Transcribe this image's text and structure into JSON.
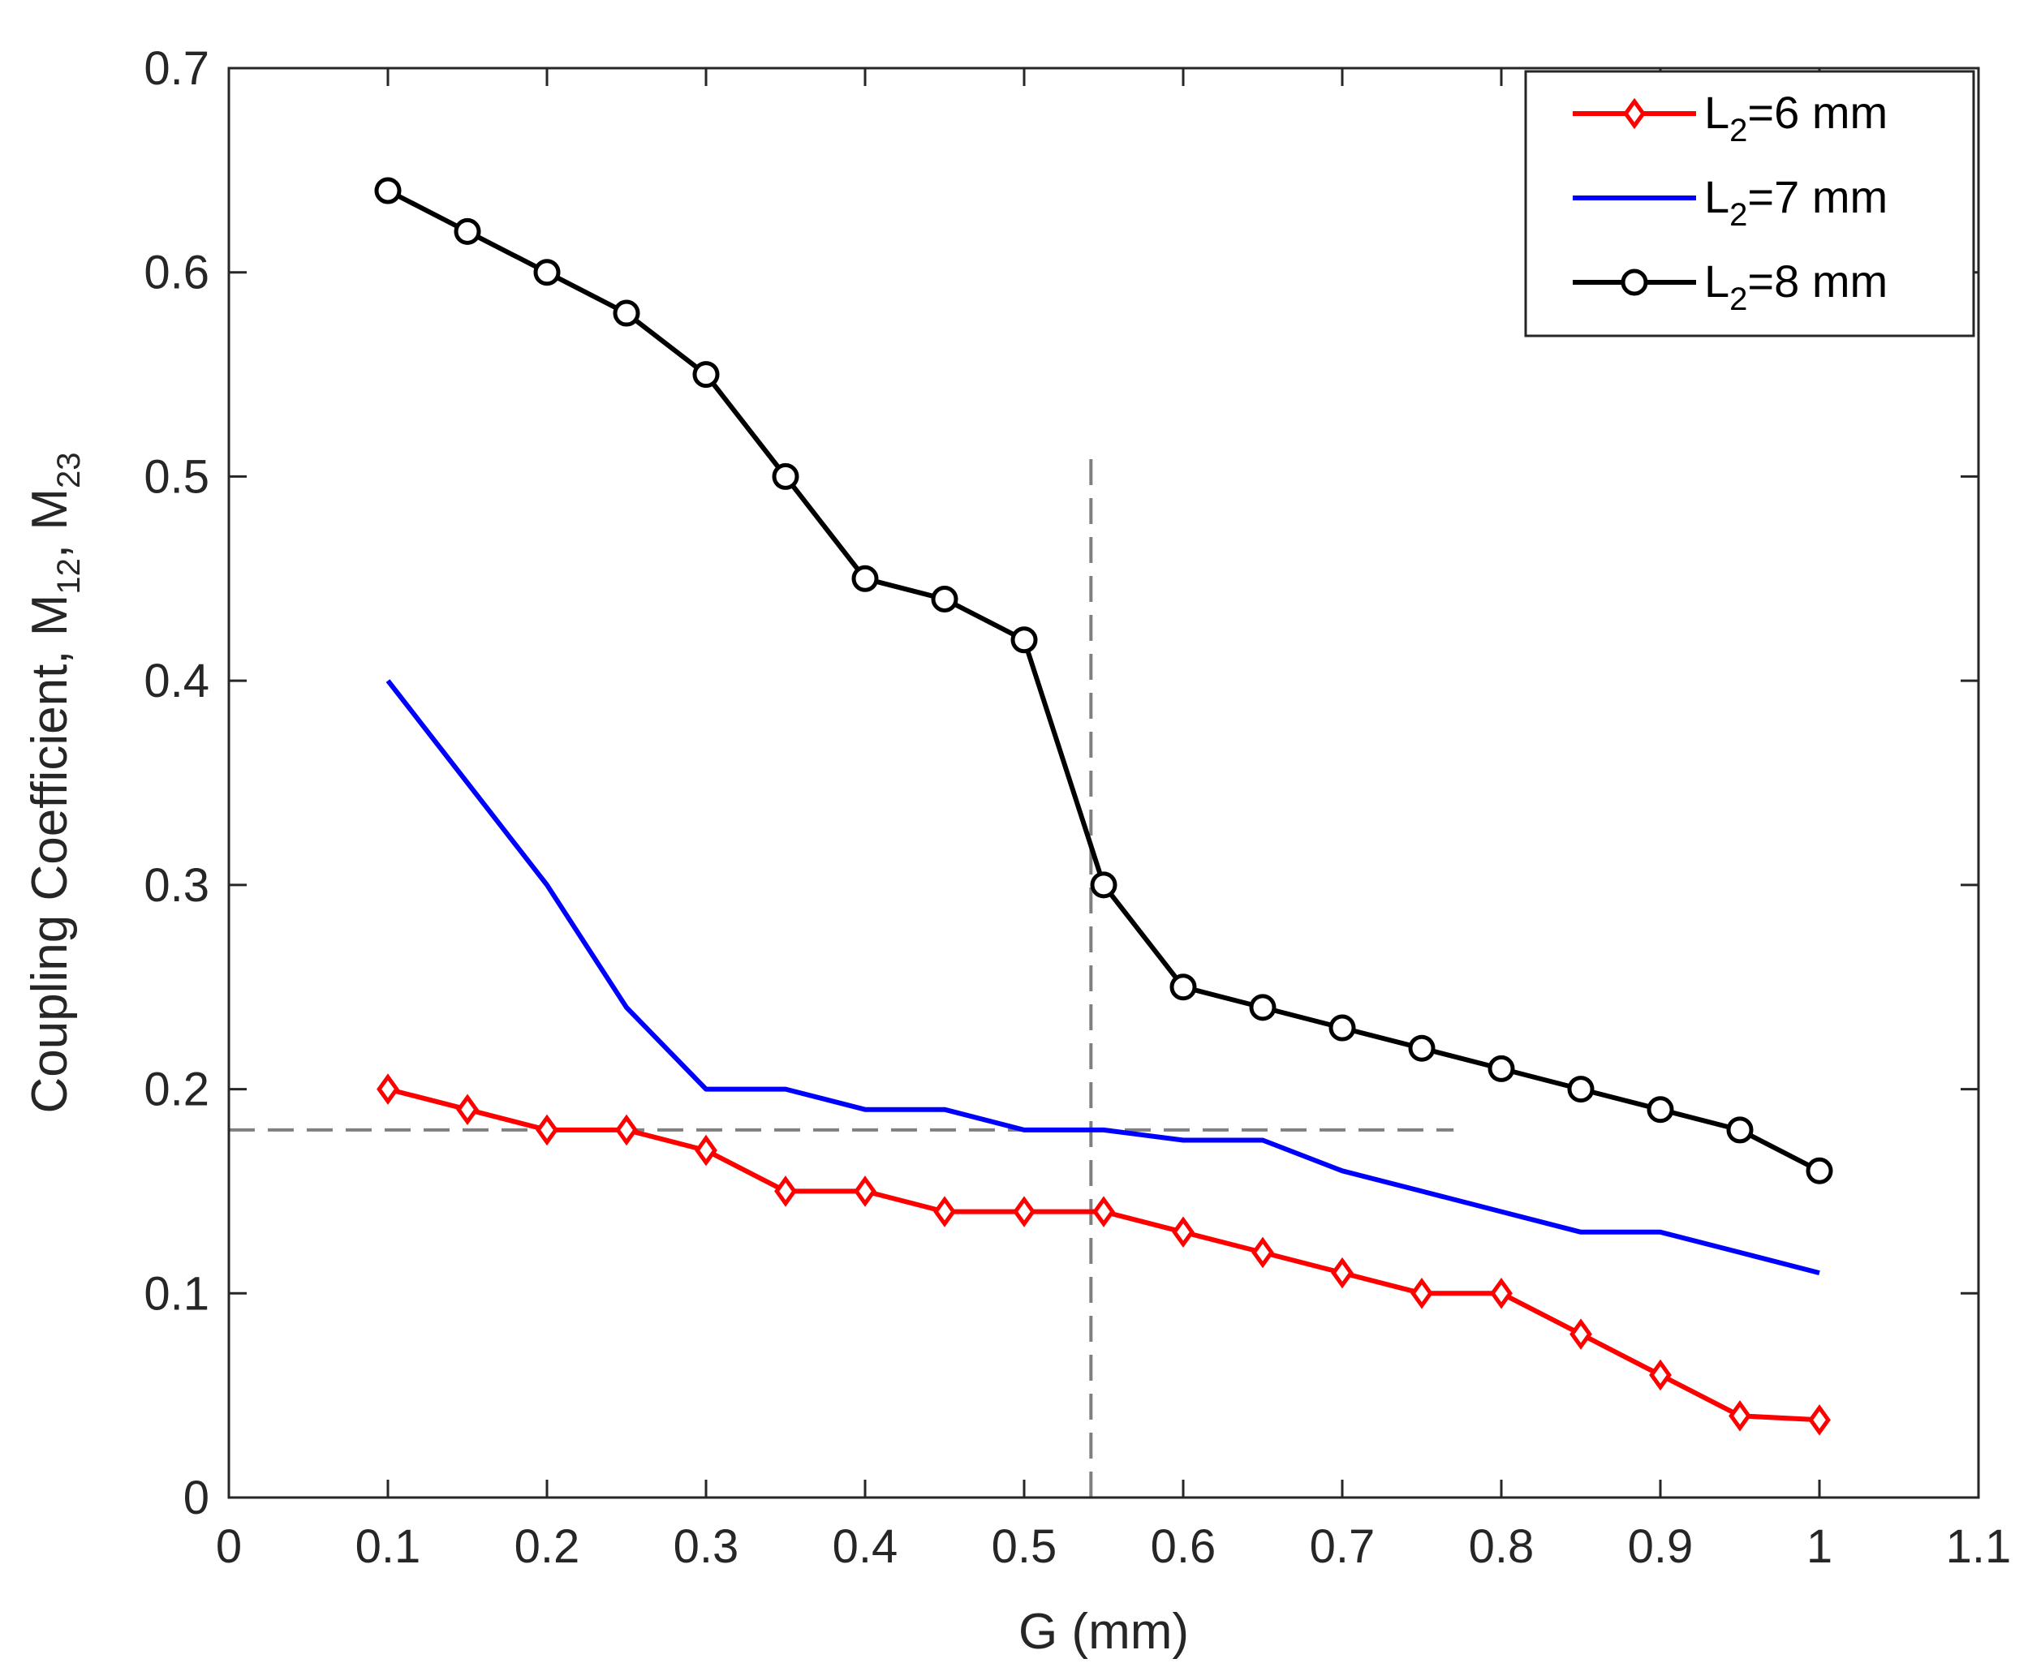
{
  "chart_data": {
    "type": "line",
    "title": "",
    "xlabel": "G (mm)",
    "ylabel": {
      "prefix": "Coupling Coefficient, M",
      "sub1": "12",
      "sep": ", M",
      "sub2": "23"
    },
    "xlim": [
      0,
      1.1
    ],
    "ylim": [
      0,
      0.7
    ],
    "xticks": [
      0,
      0.1,
      0.2,
      0.3,
      0.4,
      0.5,
      0.6,
      0.7,
      0.8,
      0.9,
      1,
      1.1
    ],
    "xtick_labels": [
      "0",
      "0.1",
      "0.2",
      "0.3",
      "0.4",
      "0.5",
      "0.6",
      "0.7",
      "0.8",
      "0.9",
      "1",
      "1.1"
    ],
    "yticks": [
      0,
      0.1,
      0.2,
      0.3,
      0.4,
      0.5,
      0.6,
      0.7
    ],
    "ytick_labels": [
      "0",
      "0.1",
      "0.2",
      "0.3",
      "0.4",
      "0.5",
      "0.6",
      "0.7"
    ],
    "grid": false,
    "legend_position": "top-right",
    "x": [
      0.1,
      0.15,
      0.2,
      0.25,
      0.3,
      0.35,
      0.4,
      0.45,
      0.5,
      0.55,
      0.6,
      0.65,
      0.7,
      0.75,
      0.8,
      0.85,
      0.9,
      0.95,
      1.0
    ],
    "series": [
      {
        "id": "l2-6mm",
        "name_prefix": "L",
        "name_sub": "2",
        "name_suffix": "=6 mm",
        "color": "#ff0000",
        "marker": "diamond",
        "values": [
          0.2,
          0.19,
          0.18,
          0.18,
          0.17,
          0.15,
          0.15,
          0.14,
          0.14,
          0.14,
          0.13,
          0.12,
          0.11,
          0.1,
          0.1,
          0.08,
          0.06,
          0.04,
          0.038
        ]
      },
      {
        "id": "l2-7mm",
        "name_prefix": "L",
        "name_sub": "2",
        "name_suffix": "=7 mm",
        "color": "#0000ff",
        "marker": "none",
        "values": [
          0.4,
          0.35,
          0.3,
          0.24,
          0.2,
          0.2,
          0.19,
          0.19,
          0.18,
          0.18,
          0.175,
          0.175,
          0.16,
          0.15,
          0.14,
          0.13,
          0.13,
          0.12,
          0.11
        ]
      },
      {
        "id": "l2-8mm",
        "name_prefix": "L",
        "name_sub": "2",
        "name_suffix": "=8 mm",
        "color": "#000000",
        "marker": "circle",
        "values": [
          0.64,
          0.62,
          0.6,
          0.58,
          0.55,
          0.5,
          0.45,
          0.44,
          0.42,
          0.3,
          0.25,
          0.24,
          0.23,
          0.22,
          0.21,
          0.2,
          0.19,
          0.18,
          0.16
        ]
      }
    ],
    "reference_lines": [
      {
        "id": "horizontal-reference",
        "orientation": "horizontal",
        "value": 0.18,
        "from": 0,
        "to": 0.77,
        "color": "#808080"
      },
      {
        "id": "vertical-reference",
        "orientation": "vertical",
        "value": 0.542,
        "from": 0,
        "to": 0.51,
        "color": "#808080"
      }
    ]
  }
}
